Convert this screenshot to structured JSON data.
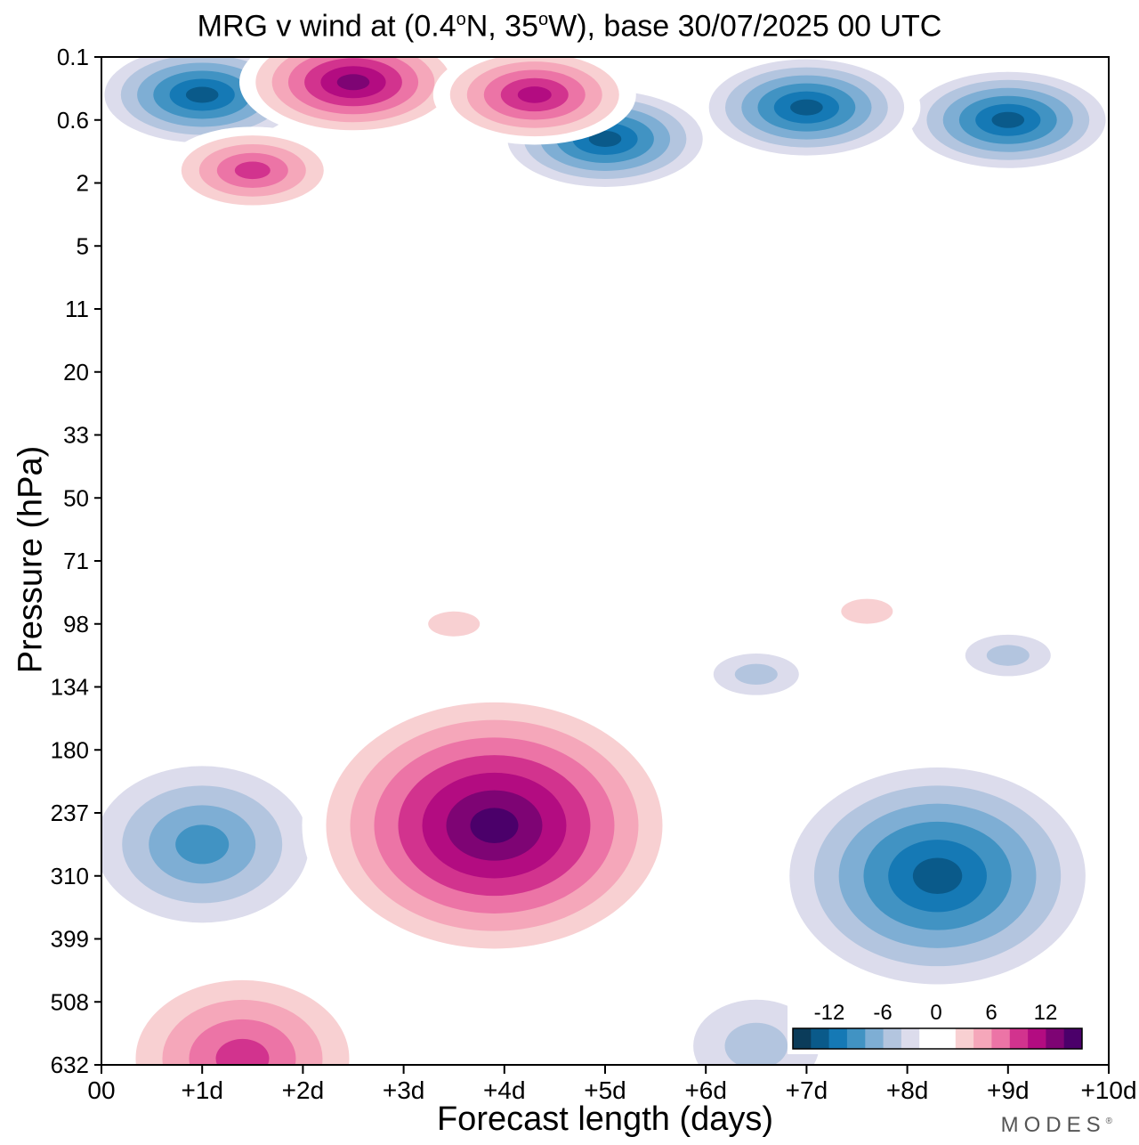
{
  "title": {
    "prefix": "MRG v wind at (0.4",
    "deg1": "o",
    "mid": "N, 35",
    "deg2": "o",
    "suffix": "W),  base 30/07/2025  00 UTC"
  },
  "logo": {
    "text": "MODES",
    "mark": "®"
  },
  "chart_data": {
    "type": "heatmap",
    "title": "MRG v wind at (0.4°N, 35°W),  base 30/07/2025  00 UTC",
    "xlabel": "Forecast length (days)",
    "ylabel": "Pressure (hPa)",
    "x_ticks": [
      "00",
      "+1d",
      "+2d",
      "+3d",
      "+4d",
      "+5d",
      "+6d",
      "+7d",
      "+8d",
      "+9d",
      "+10d"
    ],
    "x_range_days": [
      0,
      10
    ],
    "y_ticks": [
      "0.1",
      "0.6",
      "2",
      "5",
      "11",
      "20",
      "33",
      "50",
      "71",
      "98",
      "134",
      "180",
      "237",
      "310",
      "399",
      "508",
      "632"
    ],
    "y_direction": "pressure decreasing upward",
    "colorbar": {
      "ticks": [
        "-12",
        "-6",
        "0",
        "6",
        "12"
      ],
      "levels": [
        -14,
        -12,
        -10,
        -8,
        -6,
        -4,
        -2,
        0,
        2,
        4,
        6,
        8,
        10,
        12,
        14
      ],
      "colors": [
        "#0b3c5a",
        "#0a5a8a",
        "#1579b5",
        "#4193c3",
        "#7eaed4",
        "#b3c5df",
        "#dcdcec",
        "#ffffff",
        "#ffffff",
        "#f8d0d2",
        "#f5a7ba",
        "#ec74a6",
        "#d2338e",
        "#b30c81",
        "#7e0474",
        "#4b006a"
      ],
      "location": "bottom-right"
    },
    "features": [
      {
        "name": "negative upper-trop trough (day 1)",
        "day": 1.0,
        "level_index": 12.5,
        "peak": -10
      },
      {
        "name": "positive upper-trop ridge (day 4)",
        "day": 3.9,
        "level_index": 12.2,
        "peak": 16
      },
      {
        "name": "negative upper-trop trough (day 8.3)",
        "day": 8.3,
        "level_index": 13.0,
        "peak": -14
      },
      {
        "name": "negative low-level (day 6.5)",
        "day": 6.5,
        "level_index": 15.7,
        "peak": -5
      },
      {
        "name": "positive low-level (day 1.4)",
        "day": 1.4,
        "level_index": 15.9,
        "peak": 9
      },
      {
        "name": "negative tilted band (day 6.5)",
        "day": 6.5,
        "level_index": 9.8,
        "peak": -5
      },
      {
        "name": "positive tilted band (day 3.5)",
        "day": 3.5,
        "level_index": 9.0,
        "peak": 3
      },
      {
        "name": "positive band (day 7.5)",
        "day": 7.6,
        "level_index": 8.8,
        "peak": 4
      },
      {
        "name": "negative band (day 9)",
        "day": 9.0,
        "level_index": 9.5,
        "peak": -6
      },
      {
        "name": "stratospheric negative (day 5)",
        "day": 5.0,
        "level_index": 1.3,
        "peak": -14
      },
      {
        "name": "stratospheric negative (day 9)",
        "day": 9.0,
        "level_index": 1.0,
        "peak": -14
      },
      {
        "name": "stratospheric negative (day 1)",
        "day": 1.0,
        "level_index": 0.6,
        "peak": -14
      },
      {
        "name": "stratospheric negative (day 7)",
        "day": 7.0,
        "level_index": 0.8,
        "peak": -13
      },
      {
        "name": "stratospheric positive (day 2.5)",
        "day": 2.5,
        "level_index": 0.4,
        "peak": 13
      },
      {
        "name": "stratospheric positive (day 4.3)",
        "day": 4.3,
        "level_index": 0.6,
        "peak": 12
      },
      {
        "name": "stratospheric positive (day 1.5)",
        "day": 1.5,
        "level_index": 1.8,
        "peak": 10
      }
    ]
  }
}
